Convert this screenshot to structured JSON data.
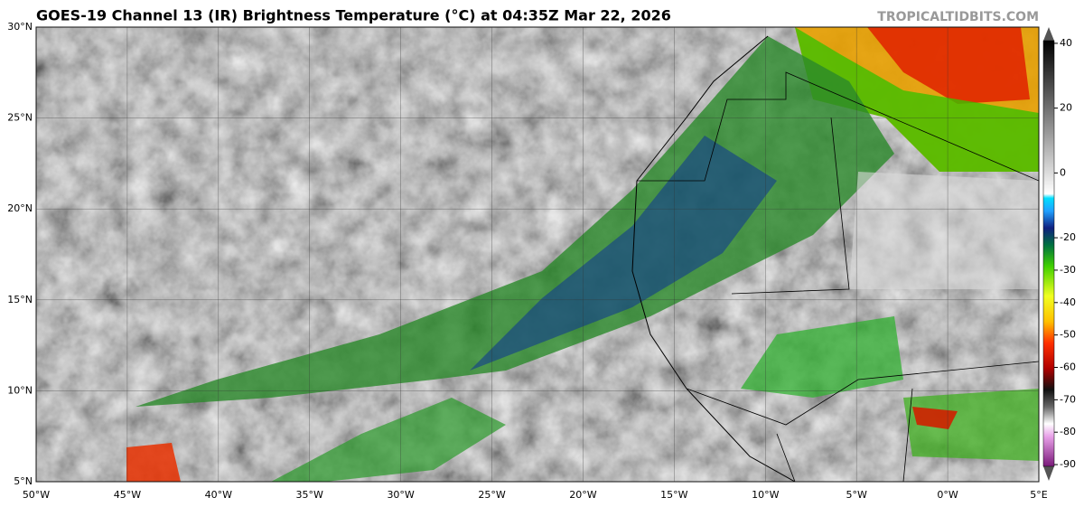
{
  "header": {
    "title": "GOES-19 Channel 13 (IR) Brightness Temperature (°C) at 04:35Z Mar 22, 2026",
    "credit": "TROPICALTIDBITS.COM"
  },
  "map": {
    "lon_range": [
      -50,
      5
    ],
    "lat_range": [
      5,
      30
    ],
    "lat_ticks": [
      {
        "value": 30,
        "label": "30°N"
      },
      {
        "value": 25,
        "label": "25°N"
      },
      {
        "value": 20,
        "label": "20°N"
      },
      {
        "value": 15,
        "label": "15°N"
      },
      {
        "value": 10,
        "label": "10°N"
      },
      {
        "value": 5,
        "label": "5°N"
      }
    ],
    "lon_ticks": [
      {
        "value": -50,
        "label": "50°W"
      },
      {
        "value": -45,
        "label": "45°W"
      },
      {
        "value": -40,
        "label": "40°W"
      },
      {
        "value": -35,
        "label": "35°W"
      },
      {
        "value": -30,
        "label": "30°W"
      },
      {
        "value": -25,
        "label": "25°W"
      },
      {
        "value": -20,
        "label": "20°W"
      },
      {
        "value": -15,
        "label": "15°W"
      },
      {
        "value": -10,
        "label": "10°W"
      },
      {
        "value": -5,
        "label": "5°W"
      },
      {
        "value": 0,
        "label": "0°W"
      },
      {
        "value": 5,
        "label": "5°E"
      }
    ]
  },
  "colorbar": {
    "lim": [
      -95,
      45
    ],
    "ticks": [
      40,
      20,
      0,
      -20,
      -30,
      -40,
      -50,
      -60,
      -70,
      -80,
      -90
    ]
  }
}
